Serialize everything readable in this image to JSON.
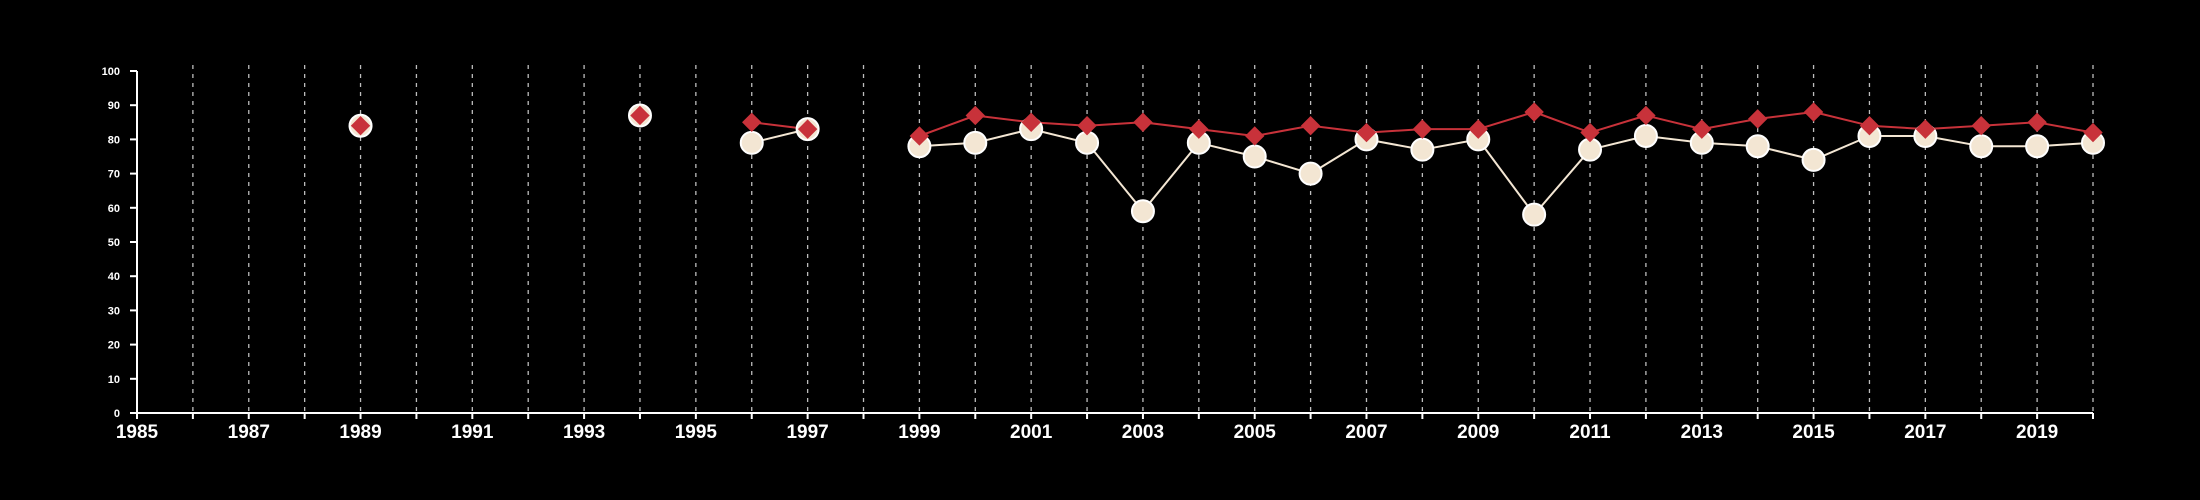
{
  "chart_data": {
    "type": "line",
    "title": "",
    "xlabel": "",
    "ylabel": "",
    "xlim": [
      1985,
      2020
    ],
    "ylim": [
      0,
      100
    ],
    "x_ticks": [
      1985,
      1987,
      1989,
      1991,
      1993,
      1995,
      1997,
      1999,
      2001,
      2003,
      2005,
      2007,
      2009,
      2011,
      2013,
      2015,
      2017,
      2019
    ],
    "y_ticks": [
      0,
      10,
      20,
      30,
      40,
      50,
      60,
      70,
      80,
      90,
      100
    ],
    "vertical_grid": "dashed, every year 1986-2020",
    "legend": "none",
    "series": [
      {
        "marker": "circle",
        "color": "#f3e6d3",
        "points": [
          {
            "x": 1989,
            "y": 84
          },
          {
            "x": 1994,
            "y": 87
          },
          {
            "x": 1996,
            "y": 79
          },
          {
            "x": 1997,
            "y": 83
          },
          {
            "x": 1999,
            "y": 78
          },
          {
            "x": 2000,
            "y": 79
          },
          {
            "x": 2001,
            "y": 83
          },
          {
            "x": 2002,
            "y": 79
          },
          {
            "x": 2003,
            "y": 59
          },
          {
            "x": 2004,
            "y": 79
          },
          {
            "x": 2005,
            "y": 75
          },
          {
            "x": 2006,
            "y": 70
          },
          {
            "x": 2007,
            "y": 80
          },
          {
            "x": 2008,
            "y": 77
          },
          {
            "x": 2009,
            "y": 80
          },
          {
            "x": 2010,
            "y": 58
          },
          {
            "x": 2011,
            "y": 77
          },
          {
            "x": 2012,
            "y": 81
          },
          {
            "x": 2013,
            "y": 79
          },
          {
            "x": 2014,
            "y": 78
          },
          {
            "x": 2015,
            "y": 74
          },
          {
            "x": 2016,
            "y": 81
          },
          {
            "x": 2017,
            "y": 81
          },
          {
            "x": 2018,
            "y": 78
          },
          {
            "x": 2019,
            "y": 78
          },
          {
            "x": 2020,
            "y": 79
          }
        ],
        "segments": [
          [
            1996,
            1997
          ],
          [
            1999,
            2020
          ]
        ]
      },
      {
        "marker": "diamond",
        "color": "#c8323a",
        "points": [
          {
            "x": 1989,
            "y": 84
          },
          {
            "x": 1994,
            "y": 87
          },
          {
            "x": 1996,
            "y": 85
          },
          {
            "x": 1997,
            "y": 83
          },
          {
            "x": 1999,
            "y": 81
          },
          {
            "x": 2000,
            "y": 87
          },
          {
            "x": 2001,
            "y": 85
          },
          {
            "x": 2002,
            "y": 84
          },
          {
            "x": 2003,
            "y": 85
          },
          {
            "x": 2004,
            "y": 83
          },
          {
            "x": 2005,
            "y": 81
          },
          {
            "x": 2006,
            "y": 84
          },
          {
            "x": 2007,
            "y": 82
          },
          {
            "x": 2008,
            "y": 83
          },
          {
            "x": 2009,
            "y": 83
          },
          {
            "x": 2010,
            "y": 88
          },
          {
            "x": 2011,
            "y": 82
          },
          {
            "x": 2012,
            "y": 87
          },
          {
            "x": 2013,
            "y": 83
          },
          {
            "x": 2014,
            "y": 86
          },
          {
            "x": 2015,
            "y": 88
          },
          {
            "x": 2016,
            "y": 84
          },
          {
            "x": 2017,
            "y": 83
          },
          {
            "x": 2018,
            "y": 84
          },
          {
            "x": 2019,
            "y": 85
          },
          {
            "x": 2020,
            "y": 82
          }
        ],
        "segments": [
          [
            1996,
            1997
          ],
          [
            1999,
            2020
          ]
        ]
      }
    ]
  }
}
